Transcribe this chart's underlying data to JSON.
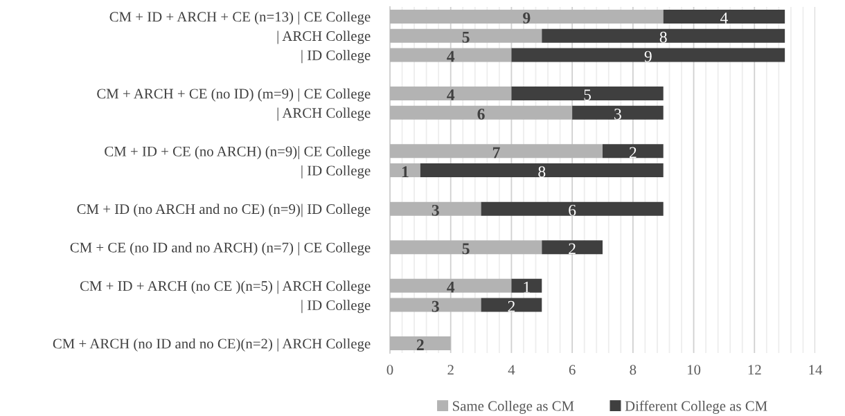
{
  "chart_data": {
    "type": "bar",
    "orientation": "horizontal",
    "stacked": true,
    "data_labels": true,
    "grid": "x",
    "legend": "bottom",
    "categories": [
      "CM + ID + ARCH + CE (n=13) | CE College",
      "| ARCH College",
      "| ID College",
      null,
      "CM + ARCH + CE (no ID) (m=9) | CE College",
      "| ARCH College",
      null,
      "CM + ID + CE (no ARCH) (n=9)| CE College",
      "| ID College",
      null,
      "CM + ID (no ARCH and no CE) (n=9)| ID College",
      null,
      "CM + CE (no ID and no ARCH) (n=7) | CE College",
      null,
      "CM + ID + ARCH (no CE )(n=5) | ARCH College",
      "| ID College",
      null,
      "CM + ARCH (no ID and no CE)(n=2) | ARCH College"
    ],
    "series": [
      {
        "name": "Same College as CM",
        "color": "#b3b3b3",
        "values": [
          9,
          5,
          4,
          null,
          4,
          6,
          null,
          7,
          1,
          null,
          3,
          null,
          5,
          null,
          4,
          3,
          null,
          2
        ]
      },
      {
        "name": "Different College as CM",
        "color": "#3f3f3f",
        "values": [
          4,
          8,
          9,
          null,
          5,
          3,
          null,
          2,
          8,
          null,
          6,
          null,
          2,
          null,
          1,
          2,
          null,
          null
        ]
      }
    ],
    "xlim": [
      0,
      14
    ],
    "xticks": [
      0,
      {
        "value": 0.4,
        "label": null
      },
      {
        "value": 0.8,
        "label": null
      },
      {
        "value": 1.2,
        "label": null
      },
      {
        "value": 1.6,
        "label": null
      },
      2,
      {
        "value": 2.4,
        "label": null
      },
      {
        "value": 2.8,
        "label": null
      },
      {
        "value": 3.2,
        "label": null
      },
      {
        "value": 3.6,
        "label": null
      },
      4,
      {
        "value": 4.4,
        "label": null
      },
      {
        "value": 4.8,
        "label": null
      },
      {
        "value": 5.2,
        "label": null
      },
      {
        "value": 5.6,
        "label": null
      },
      6,
      {
        "value": 6.4,
        "label": null
      },
      {
        "value": 6.8,
        "label": null
      },
      {
        "value": 7.2,
        "label": null
      },
      {
        "value": 7.6,
        "label": null
      },
      8,
      {
        "value": 8.4,
        "label": null
      },
      {
        "value": 8.8,
        "label": null
      },
      {
        "value": 9.2,
        "label": null
      },
      {
        "value": 9.6,
        "label": null
      },
      10,
      {
        "value": 10.4,
        "label": null
      },
      {
        "value": 10.8,
        "label": null
      },
      {
        "value": 11.2,
        "label": null
      },
      {
        "value": 11.6,
        "label": null
      },
      12,
      {
        "value": 12.4,
        "label": null
      },
      {
        "value": 12.8,
        "label": null
      },
      {
        "value": 13.2,
        "label": null
      },
      {
        "value": 13.6,
        "label": null
      },
      14
    ]
  }
}
